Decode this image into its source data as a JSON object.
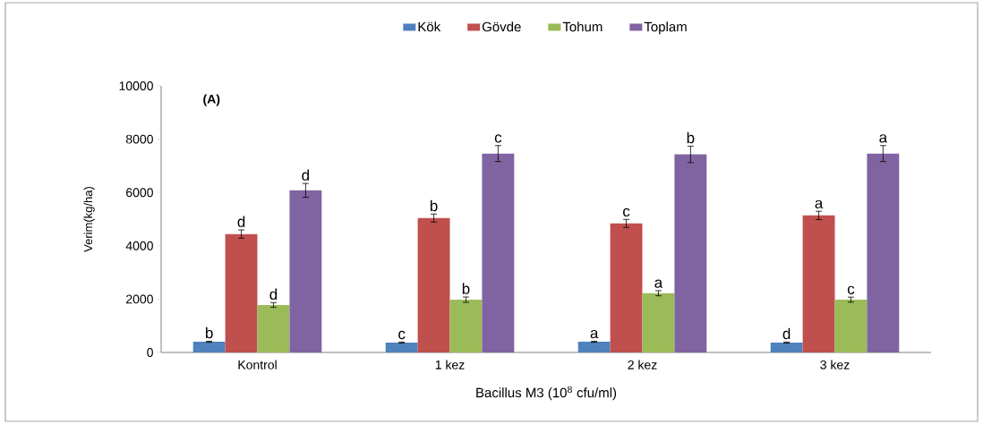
{
  "chart_data": {
    "type": "bar",
    "xlabel": "Bacillus M3 (10$^{8}$ cfu/ml)",
    "ylabel": "Verim(kg/ha)",
    "categories": [
      "Kontrol",
      "1 kez",
      "2 kez",
      "3 kez"
    ],
    "series": [
      {
        "name": "Kök",
        "color": "#4f81bd",
        "values": [
          400,
          370,
          400,
          370
        ],
        "errors": [
          20,
          20,
          20,
          20
        ],
        "value_labels": [
          "b",
          "c",
          "a",
          "d"
        ]
      },
      {
        "name": "Gövde",
        "color": "#c0504d",
        "values": [
          4440,
          5040,
          4840,
          5140
        ],
        "errors": [
          155,
          150,
          150,
          155
        ],
        "value_labels": [
          "d",
          "b",
          "c",
          "a"
        ]
      },
      {
        "name": "Tohum",
        "color": "#9bbb59",
        "values": [
          1780,
          1980,
          2220,
          1980
        ],
        "errors": [
          90,
          100,
          95,
          95
        ],
        "value_labels": [
          "d",
          "b",
          "a",
          "c"
        ]
      },
      {
        "name": "Toplam",
        "color": "#8064a2",
        "values": [
          6080,
          7460,
          7430,
          7460
        ],
        "errors": [
          260,
          300,
          310,
          300
        ],
        "value_labels": [
          "d",
          "c",
          "b",
          "a"
        ]
      }
    ],
    "ylim": [
      0,
      10000
    ],
    "yticks": [
      0,
      2000,
      4000,
      6000,
      8000,
      10000
    ],
    "legend": "top",
    "annotations": [
      "(A)"
    ]
  }
}
